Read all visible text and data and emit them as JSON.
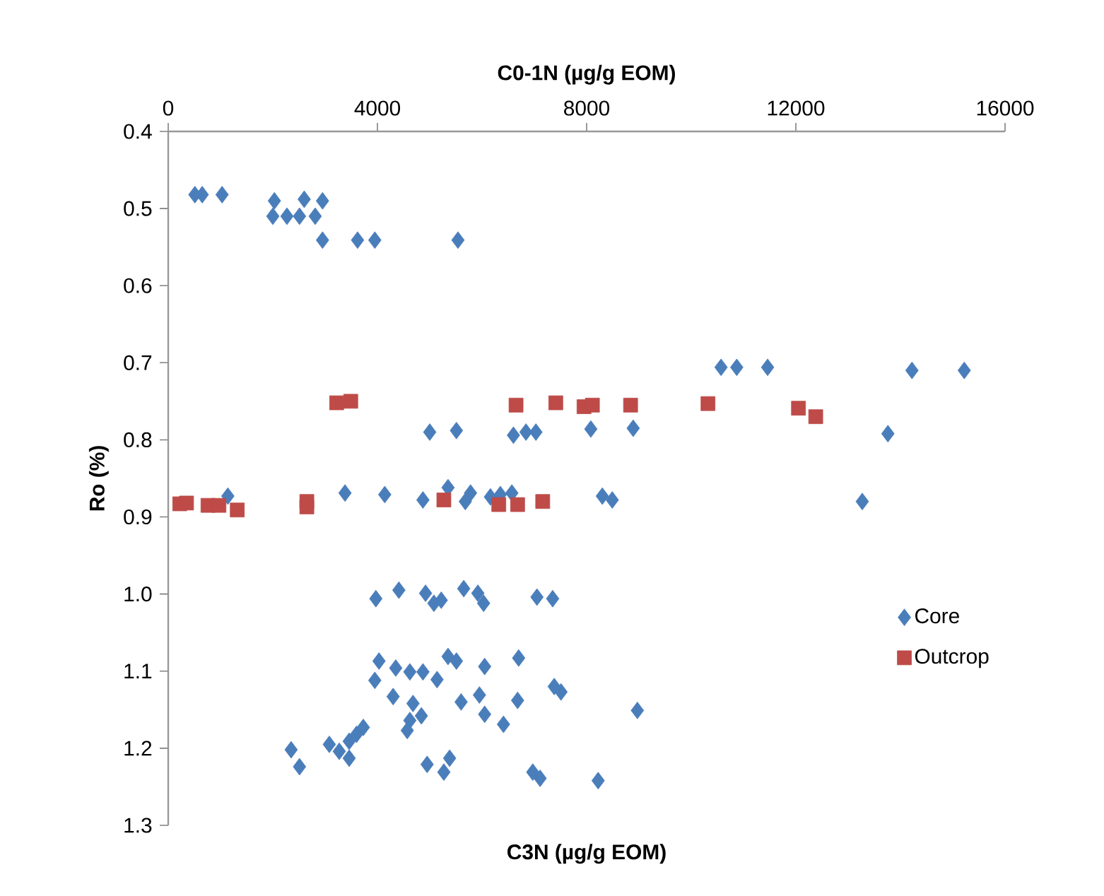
{
  "chart_data": {
    "type": "scatter",
    "xlabel": "C0-1N (µg/g EOM)",
    "annotations": [
      "C3N (µg/g EOM)"
    ],
    "ylabel": "Ro (%)",
    "xlim": [
      0,
      16000
    ],
    "xticks": [
      0,
      4000,
      8000,
      12000,
      16000
    ],
    "ylim": [
      1.3,
      0.4
    ],
    "yticks": [
      0.4,
      0.5,
      0.6,
      0.7,
      0.8,
      0.9,
      {
        "value": 1,
        "label": "1.0"
      },
      1.1,
      1.2,
      1.3
    ],
    "grid": false,
    "legend": "right",
    "series": [
      {
        "name": "Core",
        "color": "#4a7ebb",
        "marker": "diamond",
        "x": [
          510,
          650,
          1030,
          2030,
          2000,
          2270,
          2600,
          2510,
          2950,
          2810,
          2950,
          3620,
          3950,
          5540,
          5000,
          5510,
          6600,
          6840,
          7030,
          8080,
          8890,
          10570,
          10870,
          11460,
          14220,
          15220,
          13760,
          13270,
          8970,
          1140,
          3380,
          4140,
          4870,
          5350,
          5680,
          5780,
          6160,
          6350,
          6570,
          8300,
          8490,
          3970,
          4410,
          4920,
          5080,
          5220,
          5650,
          5920,
          6030,
          7050,
          7350,
          4030,
          4350,
          4620,
          4870,
          5350,
          5510,
          5140,
          3950,
          4300,
          6050,
          6700,
          7380,
          7510,
          5600,
          5950,
          6680,
          6050,
          6410,
          4680,
          4840,
          4620,
          4570,
          3730,
          3600,
          3460,
          3080,
          3270,
          3460,
          2350,
          2510,
          4950,
          5380,
          5270,
          6970,
          7110,
          8220
        ],
        "values": [
          0.482,
          0.482,
          0.482,
          0.49,
          0.51,
          0.51,
          0.488,
          0.51,
          0.49,
          0.51,
          0.541,
          0.541,
          0.541,
          0.541,
          0.79,
          0.788,
          0.794,
          0.79,
          0.79,
          0.786,
          0.785,
          0.706,
          0.706,
          0.706,
          0.71,
          0.71,
          0.792,
          0.88,
          1.151,
          0.873,
          0.869,
          0.871,
          0.878,
          0.862,
          0.88,
          0.869,
          0.874,
          0.871,
          0.869,
          0.873,
          0.878,
          1.006,
          0.995,
          0.999,
          1.012,
          1.008,
          0.993,
          0.999,
          1.012,
          1.004,
          1.006,
          1.087,
          1.096,
          1.101,
          1.101,
          1.081,
          1.087,
          1.111,
          1.112,
          1.133,
          1.094,
          1.083,
          1.12,
          1.127,
          1.14,
          1.131,
          1.138,
          1.156,
          1.169,
          1.142,
          1.158,
          1.164,
          1.177,
          1.173,
          1.182,
          1.191,
          1.195,
          1.204,
          1.213,
          1.202,
          1.224,
          1.221,
          1.213,
          1.231,
          1.231,
          1.239,
          1.242
        ]
      },
      {
        "name": "Outcrop",
        "color": "#be4b48",
        "marker": "square",
        "x": [
          3220,
          3490,
          6650,
          7410,
          7950,
          8110,
          8840,
          10320,
          12050,
          12380,
          220,
          350,
          760,
          970,
          1320,
          2650,
          2650,
          5270,
          6320,
          6680,
          7160
        ],
        "values": [
          0.752,
          0.75,
          0.755,
          0.752,
          0.757,
          0.755,
          0.755,
          0.753,
          0.759,
          0.77,
          0.883,
          0.882,
          0.885,
          0.885,
          0.891,
          0.88,
          0.887,
          0.878,
          0.884,
          0.884,
          0.88
        ]
      }
    ]
  }
}
